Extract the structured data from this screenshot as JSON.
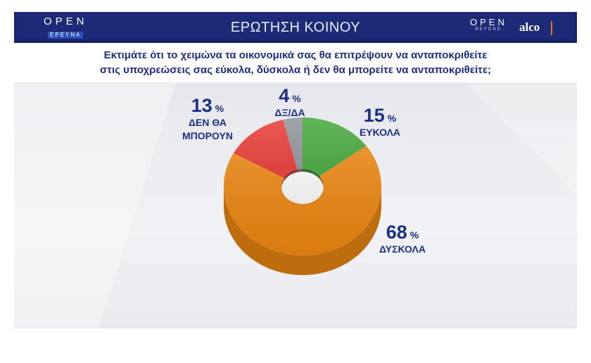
{
  "header": {
    "logo_left_top": "OPEN",
    "logo_left_bottom": "ΕΡΕΥΝΑ",
    "title": "ΕΡΩΤΗΣΗ ΚΟΙΝΟΥ",
    "logo_right_top": "OPEN",
    "logo_right_bottom": "BEYOND",
    "partner_logo": "alco"
  },
  "question": {
    "line1": "Εκτιμάτε ότι το χειμώνα τα οικονομικά σας θα επιτρέψουν  να ανταποκριθείτε",
    "line2": "στις υποχρεώσεις σας εύκολα, δύσκολα ή δεν θα μπορείτε να ανταποκριθείτε;"
  },
  "colors": {
    "header_bg": "#1c2a78",
    "text": "#1d2f86"
  },
  "chart_data": {
    "type": "pie",
    "title": "",
    "slices": [
      {
        "value": 15,
        "percent_label": "15",
        "label_lines": [
          "ΕΥΚΟΛΑ"
        ],
        "color": "#3fa535"
      },
      {
        "value": 68,
        "percent_label": "68",
        "label_lines": [
          "ΔΥΣΚΟΛΑ"
        ],
        "color": "#f28a12"
      },
      {
        "value": 13,
        "percent_label": "13",
        "label_lines": [
          "ΔΕΝ ΘΑ",
          "ΜΠΟΡΟΥΝ"
        ],
        "color": "#e8342e"
      },
      {
        "value": 4,
        "percent_label": "4",
        "label_lines": [
          "ΔΞ/ΔΑ"
        ],
        "color": "#8c9096"
      }
    ],
    "unit": "%",
    "style": "donut-3d"
  }
}
